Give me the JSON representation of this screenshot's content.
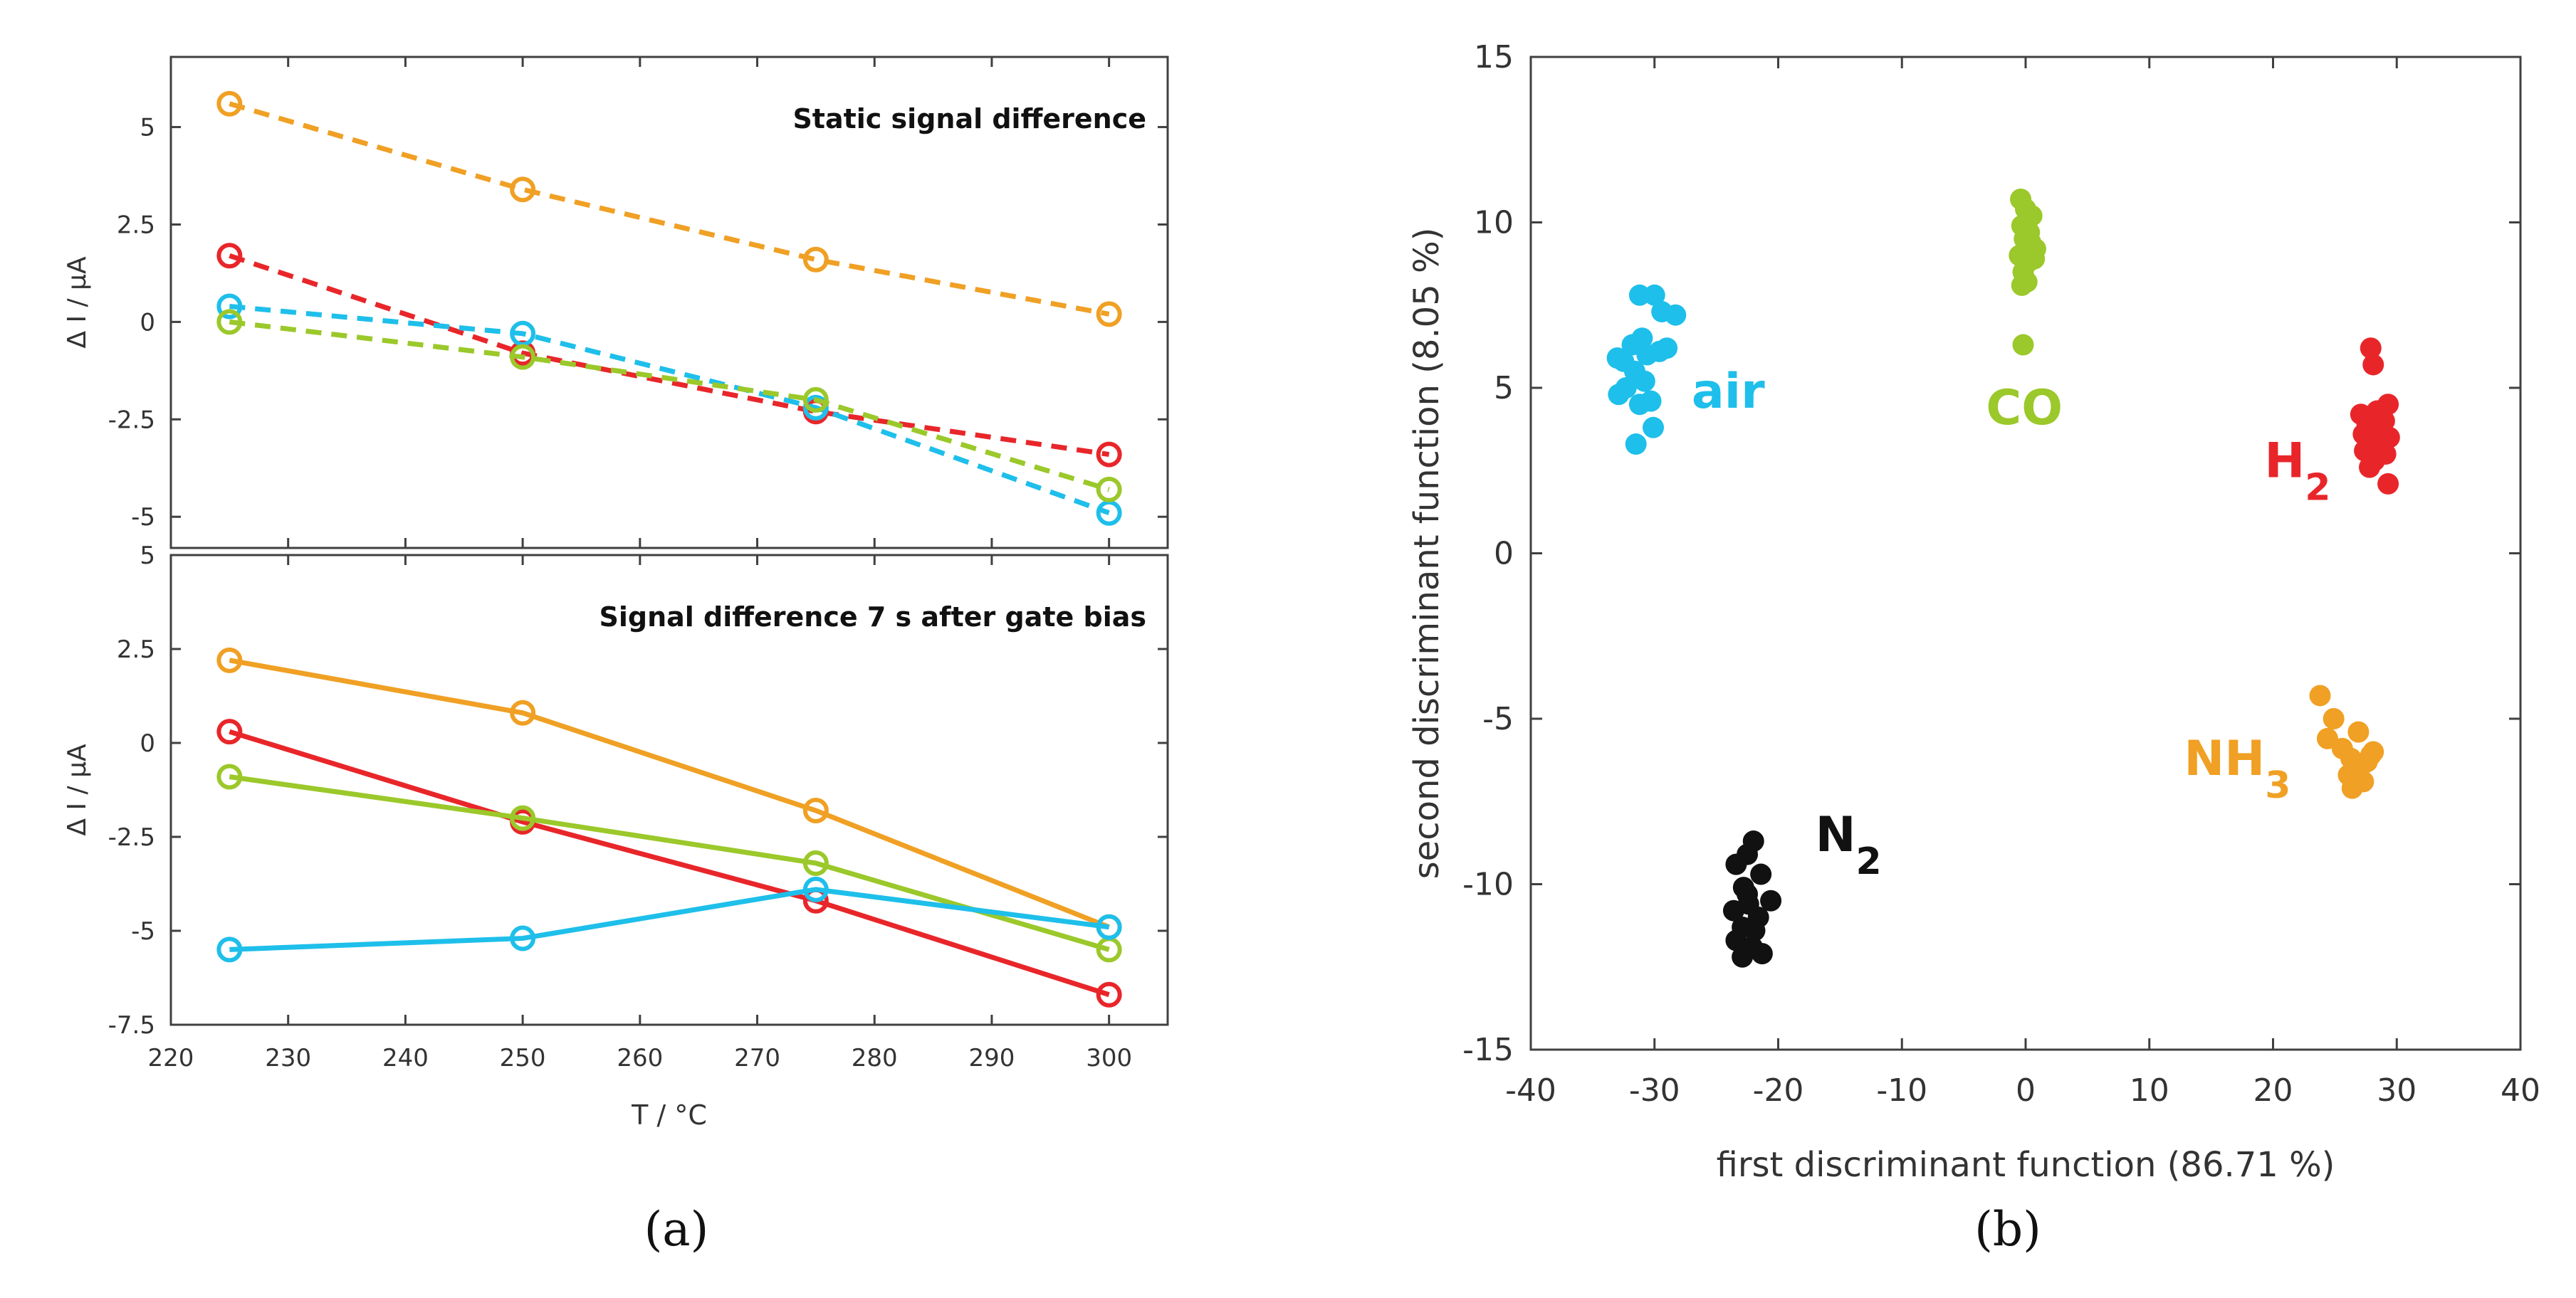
{
  "colors": {
    "orange": "#F0A024",
    "red": "#E8262A",
    "cyan": "#1EBFEA",
    "green": "#9BC82A",
    "black": "#111111",
    "axis": "#404040"
  },
  "chart_data": [
    {
      "type": "line",
      "panel": "a-top",
      "title": "Static signal difference",
      "xlabel": "",
      "ylabel": "Δ I / µA",
      "xlim": [
        220,
        305
      ],
      "ylim": [
        -5.8,
        6.8
      ],
      "yticks": [
        5,
        2.5,
        0,
        -2.5,
        -5
      ],
      "yticklabels": [
        "5",
        "2.5",
        "0",
        "-2.5",
        "-5"
      ],
      "x": [
        225,
        250,
        275,
        300
      ],
      "linestyle": "dashed",
      "series": [
        {
          "name": "NH3",
          "color": "orange",
          "values": [
            5.6,
            3.4,
            1.6,
            0.2
          ]
        },
        {
          "name": "H2",
          "color": "red",
          "values": [
            1.7,
            -0.8,
            -2.3,
            -3.4
          ]
        },
        {
          "name": "air",
          "color": "cyan",
          "values": [
            0.4,
            -0.3,
            -2.2,
            -4.9
          ]
        },
        {
          "name": "CO",
          "color": "green",
          "values": [
            0.0,
            -0.9,
            -2.0,
            -4.3
          ]
        }
      ]
    },
    {
      "type": "line",
      "panel": "a-bottom",
      "title": "Signal difference 7 s after gate bias",
      "xlabel": "T / °C",
      "ylabel": "Δ I / µA",
      "xlim": [
        220,
        305
      ],
      "ylim": [
        -7.5,
        5
      ],
      "yticks": [
        5,
        2.5,
        0,
        -2.5,
        -5,
        -7.5
      ],
      "yticklabels": [
        "5",
        "2.5",
        "0",
        "-2.5",
        "-5",
        "-7.5"
      ],
      "xticks": [
        220,
        230,
        240,
        250,
        260,
        270,
        280,
        290,
        300
      ],
      "xticklabels": [
        "220",
        "230",
        "240",
        "250",
        "260",
        "270",
        "280",
        "290",
        "300"
      ],
      "x": [
        225,
        250,
        275,
        300
      ],
      "linestyle": "solid",
      "series": [
        {
          "name": "NH3",
          "color": "orange",
          "values": [
            2.2,
            0.8,
            -1.8,
            -4.9
          ]
        },
        {
          "name": "H2",
          "color": "red",
          "values": [
            0.3,
            -2.1,
            -4.2,
            -6.7
          ]
        },
        {
          "name": "CO",
          "color": "green",
          "values": [
            -0.9,
            -2.0,
            -3.2,
            -5.5
          ]
        },
        {
          "name": "air",
          "color": "cyan",
          "values": [
            -5.5,
            -5.2,
            -3.9,
            -4.9
          ]
        }
      ]
    },
    {
      "type": "scatter",
      "panel": "b",
      "xlabel": "first discriminant function (86.71 %)",
      "ylabel": "second discriminant function (8.05 %)",
      "xlim": [
        -40,
        40
      ],
      "ylim": [
        -15,
        15
      ],
      "xticks": [
        -40,
        -30,
        -20,
        -10,
        0,
        10,
        20,
        30,
        40
      ],
      "xticklabels": [
        "-40",
        "-30",
        "-20",
        "-10",
        "0",
        "10",
        "20",
        "30",
        "40"
      ],
      "yticks": [
        15,
        10,
        5,
        0,
        -5,
        -10,
        -15
      ],
      "yticklabels": [
        "15",
        "10",
        "5",
        "0",
        "-5",
        "-10",
        "-15"
      ],
      "groups": [
        {
          "name": "air",
          "label": "air",
          "subscript": "",
          "color": "cyan",
          "points": [
            [
              -32.5,
              5.8
            ],
            [
              -31.8,
              6.3
            ],
            [
              -30.6,
              6.0
            ],
            [
              -31.2,
              7.8
            ],
            [
              -30.0,
              7.8
            ],
            [
              -29.4,
              7.3
            ],
            [
              -28.3,
              7.2
            ],
            [
              -31.0,
              6.5
            ],
            [
              -29.6,
              6.1
            ],
            [
              -33.0,
              5.9
            ],
            [
              -31.6,
              5.5
            ],
            [
              -32.3,
              5.0
            ],
            [
              -30.3,
              4.6
            ],
            [
              -32.9,
              4.8
            ],
            [
              -31.2,
              4.5
            ],
            [
              -30.1,
              3.8
            ],
            [
              -31.5,
              3.3
            ],
            [
              -30.8,
              5.2
            ],
            [
              -29.0,
              6.2
            ]
          ]
        },
        {
          "name": "CO",
          "label": "CO",
          "subscript": "",
          "color": "green",
          "points": [
            [
              -0.4,
              10.7
            ],
            [
              0.0,
              10.4
            ],
            [
              0.5,
              10.2
            ],
            [
              -0.3,
              9.9
            ],
            [
              0.3,
              9.7
            ],
            [
              -0.1,
              9.5
            ],
            [
              0.8,
              9.2
            ],
            [
              -0.5,
              9.0
            ],
            [
              0.2,
              8.8
            ],
            [
              0.7,
              8.9
            ],
            [
              -0.2,
              8.5
            ],
            [
              0.1,
              8.2
            ],
            [
              -0.3,
              8.1
            ],
            [
              0.4,
              9.4
            ],
            [
              -0.2,
              6.3
            ]
          ]
        },
        {
          "name": "H2",
          "label": "H",
          "subscript": "2",
          "color": "red",
          "points": [
            [
              27.9,
              6.2
            ],
            [
              28.1,
              5.7
            ],
            [
              29.3,
              4.5
            ],
            [
              27.1,
              4.2
            ],
            [
              28.3,
              4.1
            ],
            [
              29.0,
              4.0
            ],
            [
              27.6,
              3.9
            ],
            [
              28.6,
              3.7
            ],
            [
              27.3,
              3.6
            ],
            [
              29.4,
              3.5
            ],
            [
              28.0,
              3.3
            ],
            [
              27.4,
              3.1
            ],
            [
              29.1,
              3.0
            ],
            [
              28.2,
              2.8
            ],
            [
              27.8,
              2.6
            ],
            [
              29.3,
              2.1
            ],
            [
              28.4,
              4.3
            ]
          ]
        },
        {
          "name": "NH3",
          "label": "NH",
          "subscript": "3",
          "color": "orange",
          "points": [
            [
              23.8,
              -4.3
            ],
            [
              24.9,
              -5.0
            ],
            [
              24.4,
              -5.6
            ],
            [
              26.9,
              -5.4
            ],
            [
              25.6,
              -5.9
            ],
            [
              28.1,
              -6.0
            ],
            [
              26.3,
              -6.2
            ],
            [
              27.6,
              -6.3
            ],
            [
              26.1,
              -6.7
            ],
            [
              27.3,
              -6.9
            ],
            [
              26.4,
              -7.1
            ],
            [
              27.0,
              -6.5
            ],
            [
              27.9,
              -6.1
            ]
          ]
        },
        {
          "name": "N2",
          "label": "N",
          "subscript": "2",
          "color": "black",
          "points": [
            [
              -22.0,
              -8.7
            ],
            [
              -22.5,
              -9.1
            ],
            [
              -23.4,
              -9.4
            ],
            [
              -21.4,
              -9.7
            ],
            [
              -22.8,
              -10.1
            ],
            [
              -20.6,
              -10.5
            ],
            [
              -22.4,
              -10.6
            ],
            [
              -23.6,
              -10.8
            ],
            [
              -21.6,
              -11.0
            ],
            [
              -22.9,
              -11.3
            ],
            [
              -21.9,
              -11.4
            ],
            [
              -23.4,
              -11.7
            ],
            [
              -22.1,
              -11.9
            ],
            [
              -21.3,
              -12.1
            ],
            [
              -22.9,
              -12.2
            ],
            [
              -22.5,
              -10.3
            ]
          ]
        }
      ]
    }
  ],
  "panel_labels": {
    "a": "(a)",
    "b": "(b)"
  }
}
